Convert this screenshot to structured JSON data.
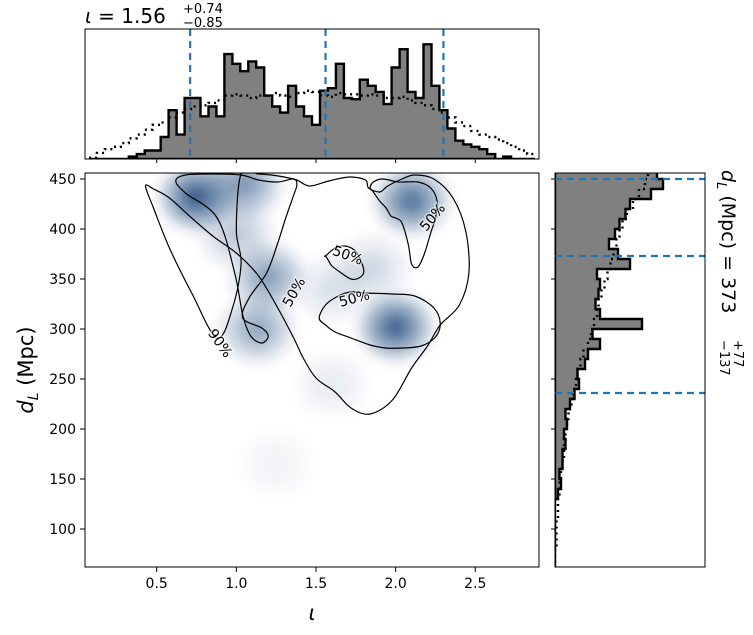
{
  "chart_data": [
    {
      "type": "heatmap",
      "panel": "joint",
      "xlabel": "ι",
      "ylabel_main": "d",
      "ylabel_sub": "L",
      "ylabel_unit": " (Mpc)",
      "xlim": [
        0.05,
        2.9
      ],
      "ylim": [
        62,
        456
      ],
      "xticks": [
        0.5,
        1.0,
        1.5,
        2.0,
        2.5
      ],
      "xtick_labels": [
        "0.5",
        "1.0",
        "1.5",
        "2.0",
        "2.5"
      ],
      "yticks": [
        100,
        150,
        200,
        250,
        300,
        350,
        400,
        450
      ],
      "ytick_labels": [
        "100",
        "150",
        "200",
        "250",
        "300",
        "350",
        "400",
        "450"
      ],
      "colormap": "Blues",
      "density_peaks": [
        {
          "x": 0.75,
          "y": 432,
          "weight": 1.0
        },
        {
          "x": 1.05,
          "y": 445,
          "weight": 0.65
        },
        {
          "x": 1.2,
          "y": 352,
          "weight": 0.6
        },
        {
          "x": 1.0,
          "y": 395,
          "weight": 0.35
        },
        {
          "x": 1.13,
          "y": 300,
          "weight": 0.55
        },
        {
          "x": 2.0,
          "y": 302,
          "weight": 0.95
        },
        {
          "x": 2.1,
          "y": 428,
          "weight": 0.85
        },
        {
          "x": 1.85,
          "y": 360,
          "weight": 0.25
        },
        {
          "x": 1.6,
          "y": 340,
          "weight": 0.2
        },
        {
          "x": 1.6,
          "y": 245,
          "weight": 0.12
        },
        {
          "x": 1.25,
          "y": 165,
          "weight": 0.07
        }
      ],
      "contours": [
        {
          "level": "90%",
          "x": [
            0.43,
            0.48,
            0.58,
            0.72,
            0.86,
            1.0,
            1.14,
            1.26,
            1.36,
            1.42,
            1.5,
            1.62,
            1.72,
            1.84,
            1.98,
            2.1,
            2.2,
            2.28,
            2.4,
            2.46,
            2.44,
            2.36,
            2.24,
            2.12,
            2.04,
            1.95,
            1.9,
            1.83,
            1.81,
            1.71,
            1.58,
            1.46,
            1.38,
            1.3,
            1.22,
            1.14,
            1.03,
            1.0,
            1.03,
            0.98,
            0.88,
            0.72,
            0.58,
            0.48
          ],
          "y": [
            443,
            440,
            431,
            411,
            392,
            376,
            353,
            321,
            291,
            271,
            251,
            237,
            221,
            215,
            229,
            261,
            283,
            304,
            324,
            356,
            398,
            431,
            450,
            454,
            450,
            443,
            437,
            441,
            449,
            452,
            448,
            443,
            449,
            452,
            454,
            455,
            455,
            399,
            366,
            323,
            291,
            336,
            381,
            421
          ]
        },
        {
          "level": "50%",
          "x": [
            0.68,
            0.86,
            1.03,
            1.14,
            1.26,
            1.36,
            1.38,
            1.36,
            1.31,
            1.26,
            1.19,
            1.08,
            1.04,
            1.16,
            1.2,
            1.16,
            1.09,
            1.04,
            0.99,
            0.88,
            0.68,
            0.62
          ],
          "y": [
            454,
            455,
            454,
            449,
            447,
            450,
            444,
            434,
            411,
            386,
            356,
            331,
            311,
            301,
            293,
            286,
            293,
            314,
            356,
            411,
            436,
            448
          ]
        },
        {
          "level": "50%",
          "x": [
            1.92,
            2.02,
            2.14,
            2.22,
            2.26,
            2.25,
            2.22,
            2.18,
            2.14,
            2.1,
            2.08,
            2.04,
            2.0,
            1.97,
            1.94,
            1.9,
            1.86,
            1.84,
            1.86
          ],
          "y": [
            450,
            447,
            447,
            441,
            428,
            411,
            396,
            375,
            362,
            365,
            384,
            406,
            411,
            413,
            421,
            428,
            437,
            441,
            447
          ]
        },
        {
          "level": "50%",
          "x": [
            1.56,
            1.62,
            1.68,
            1.74,
            1.78,
            1.8,
            1.77,
            1.72,
            1.65,
            1.6,
            1.58,
            1.56
          ],
          "y": [
            373,
            381,
            383,
            379,
            369,
            357,
            351,
            350,
            357,
            363,
            368,
            373
          ]
        },
        {
          "level": "50%",
          "x": [
            1.8,
            1.98,
            2.12,
            2.24,
            2.28,
            2.25,
            2.16,
            2.04,
            1.94,
            1.84,
            1.72,
            1.62,
            1.56,
            1.52,
            1.56,
            1.64,
            1.72,
            1.8
          ],
          "y": [
            336,
            335,
            333,
            321,
            306,
            292,
            283,
            281,
            281,
            284,
            291,
            297,
            304,
            311,
            324,
            333,
            337,
            336
          ]
        }
      ],
      "contour_labels": [
        {
          "text": "90%",
          "x": 0.9,
          "y": 286,
          "rotation": 55
        },
        {
          "text": "50%",
          "x": 1.36,
          "y": 337,
          "rotation": -60
        },
        {
          "text": "50%",
          "x": 1.7,
          "y": 374,
          "rotation": 20
        },
        {
          "text": "50%",
          "x": 1.74,
          "y": 331,
          "rotation": -15
        },
        {
          "text": "50%",
          "x": 2.23,
          "y": 412,
          "rotation": -50
        }
      ]
    },
    {
      "type": "bar",
      "panel": "top-marginal",
      "title_param": "ι",
      "title_value": "1.56",
      "title_plus": "+0.74",
      "title_minus": "−0.85",
      "xlim": [
        0.05,
        2.9
      ],
      "bins": [
        0.1,
        0.15,
        0.2,
        0.25,
        0.3,
        0.35,
        0.4,
        0.45,
        0.5,
        0.55,
        0.6,
        0.65,
        0.7,
        0.75,
        0.8,
        0.85,
        0.9,
        0.95,
        1.0,
        1.05,
        1.1,
        1.15,
        1.2,
        1.25,
        1.3,
        1.35,
        1.4,
        1.45,
        1.5,
        1.55,
        1.6,
        1.65,
        1.7,
        1.75,
        1.8,
        1.85,
        1.9,
        1.95,
        2.0,
        2.05,
        2.1,
        2.15,
        2.2,
        2.25,
        2.3,
        2.35,
        2.4,
        2.45,
        2.5,
        2.55,
        2.6,
        2.65,
        2.7,
        2.75,
        2.8,
        2.85
      ],
      "values": [
        0,
        0,
        0,
        0,
        0,
        0.02,
        0.04,
        0.07,
        0.07,
        0.18,
        0.4,
        0.2,
        0.5,
        0.5,
        0.35,
        0.43,
        0.35,
        0.86,
        0.78,
        0.72,
        0.8,
        0.75,
        0.52,
        0.43,
        0.38,
        0.6,
        0.43,
        0.35,
        0.28,
        0.56,
        0.58,
        0.78,
        0.5,
        0.49,
        0.65,
        0.6,
        0.55,
        0.45,
        0.75,
        0.9,
        0.55,
        0.5,
        0.94,
        0.6,
        0.4,
        0.25,
        0.15,
        0.12,
        0.1,
        0.08,
        0.04,
        0.0,
        0.02,
        0,
        0,
        0
      ],
      "prior_dotted": [
        0.01,
        0.05,
        0.08,
        0.1,
        0.13,
        0.17,
        0.2,
        0.24,
        0.28,
        0.3,
        0.34,
        0.38,
        0.41,
        0.43,
        0.44,
        0.46,
        0.48,
        0.52,
        0.53,
        0.52,
        0.5,
        0.52,
        0.52,
        0.54,
        0.52,
        0.51,
        0.54,
        0.56,
        0.55,
        0.52,
        0.51,
        0.54,
        0.53,
        0.53,
        0.52,
        0.53,
        0.52,
        0.5,
        0.5,
        0.51,
        0.48,
        0.46,
        0.44,
        0.41,
        0.38,
        0.34,
        0.3,
        0.27,
        0.23,
        0.2,
        0.18,
        0.16,
        0.13,
        0.1,
        0.07,
        0.04
      ],
      "quantile_lines": [
        0.71,
        1.56,
        2.3
      ]
    },
    {
      "type": "bar",
      "orientation": "horizontal",
      "panel": "right-marginal",
      "title_param_main": "d",
      "title_param_sub": "L",
      "title_unit": " (Mpc)",
      "title_value": "373",
      "title_plus": "+77",
      "title_minus": "−137",
      "ylim": [
        62,
        456
      ],
      "bins": [
        65,
        75,
        85,
        95,
        105,
        115,
        125,
        135,
        145,
        155,
        165,
        175,
        185,
        195,
        205,
        215,
        225,
        235,
        245,
        255,
        265,
        275,
        285,
        295,
        305,
        315,
        325,
        335,
        345,
        355,
        365,
        375,
        385,
        395,
        405,
        415,
        425,
        435,
        445,
        455
      ],
      "values": [
        0,
        0,
        0,
        0,
        0,
        0,
        0,
        0.02,
        0.04,
        0.03,
        0.05,
        0.05,
        0.07,
        0.06,
        0.08,
        0.07,
        0.1,
        0.13,
        0.16,
        0.15,
        0.2,
        0.22,
        0.3,
        0.25,
        0.58,
        0.3,
        0.27,
        0.29,
        0.3,
        0.28,
        0.5,
        0.42,
        0.36,
        0.4,
        0.43,
        0.47,
        0.5,
        0.64,
        0.72,
        0.68
      ],
      "prior_dotted": [
        0.0,
        0.0,
        0.01,
        0.01,
        0.01,
        0.02,
        0.02,
        0.03,
        0.03,
        0.04,
        0.05,
        0.06,
        0.06,
        0.07,
        0.08,
        0.09,
        0.11,
        0.12,
        0.14,
        0.15,
        0.17,
        0.19,
        0.22,
        0.24,
        0.26,
        0.28,
        0.29,
        0.31,
        0.33,
        0.35,
        0.37,
        0.39,
        0.41,
        0.43,
        0.45,
        0.48,
        0.52,
        0.56,
        0.6,
        0.62
      ],
      "quantile_lines": [
        236,
        373,
        450
      ]
    }
  ],
  "colors": {
    "hist_fill": "#808080",
    "quantile_line": "#1f77b4",
    "density_base": [
      8,
      48,
      107
    ]
  }
}
